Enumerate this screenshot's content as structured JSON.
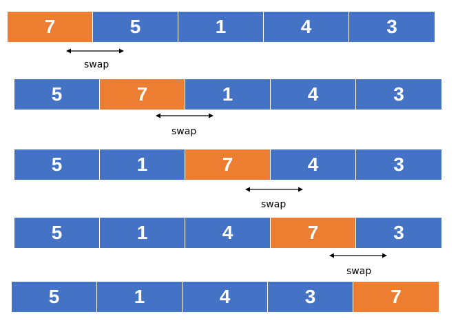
{
  "colors": {
    "blue": "#4472c4",
    "orange": "#ed7d31",
    "arrow": "#000000"
  },
  "rows": [
    {
      "values": [
        "7",
        "5",
        "1",
        "4",
        "3"
      ],
      "highlight_index": 0
    },
    {
      "values": [
        "5",
        "7",
        "1",
        "4",
        "3"
      ],
      "highlight_index": 1
    },
    {
      "values": [
        "5",
        "1",
        "7",
        "4",
        "3"
      ],
      "highlight_index": 2
    },
    {
      "values": [
        "5",
        "1",
        "4",
        "7",
        "3"
      ],
      "highlight_index": 3
    },
    {
      "values": [
        "5",
        "1",
        "4",
        "3",
        "7"
      ],
      "highlight_index": 4
    }
  ],
  "swaps": [
    {
      "label": "swap",
      "icon": "double-arrow-icon"
    },
    {
      "label": "swap",
      "icon": "double-arrow-icon"
    },
    {
      "label": "swap",
      "icon": "double-arrow-icon"
    },
    {
      "label": "swap",
      "icon": "double-arrow-icon"
    }
  ]
}
